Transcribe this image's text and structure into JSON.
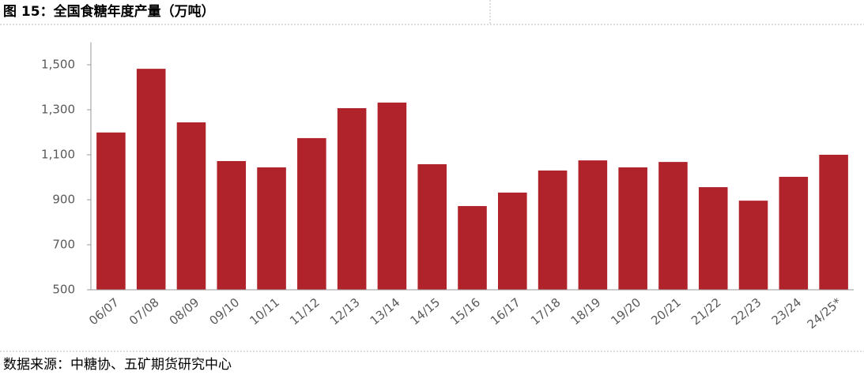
{
  "chart_data": {
    "type": "bar",
    "title": "图 15：全国食糖年度产量（万吨）",
    "source": "数据来源：中糖协、五矿期货研究中心",
    "categories": [
      "06/07",
      "07/08",
      "08/09",
      "09/10",
      "10/11",
      "11/12",
      "12/13",
      "13/14",
      "14/15",
      "15/16",
      "16/17",
      "17/18",
      "18/19",
      "19/20",
      "20/21",
      "21/22",
      "22/23",
      "23/24",
      "24/25*"
    ],
    "values": [
      1199,
      1482,
      1244,
      1072,
      1044,
      1174,
      1307,
      1332,
      1058,
      872,
      932,
      1030,
      1075,
      1044,
      1068,
      956,
      896,
      1002,
      1100
    ],
    "color": "#b0232a",
    "ylim": [
      500,
      1600
    ],
    "yticks": [
      500,
      700,
      900,
      {
        "value": 1100,
        "label": "1,100"
      },
      {
        "value": 1300,
        "label": "1,300"
      },
      {
        "value": 1500,
        "label": "1,500"
      }
    ],
    "grid": false
  }
}
